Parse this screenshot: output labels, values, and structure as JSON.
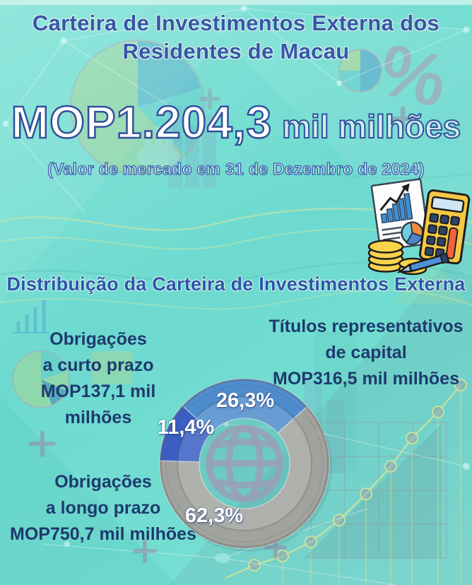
{
  "header": {
    "title_line1": "Carteira de Investimentos Externa dos",
    "title_line2": "Residentes de Macau"
  },
  "headline": {
    "value": "MOP1.204,3",
    "unit": "mil milhões",
    "subtitle": "(Valor de mercado em 31 de Dezembro de 2024)"
  },
  "section_title": "Distribuição da Carteira de Investimentos Externa",
  "chart_data": {
    "type": "pie",
    "title": "Distribuição da Carteira de Investimentos Externa",
    "total_value_label": "MOP1.204,3 mil milhões",
    "total_value": 1204.3,
    "start_angle_deg": -47,
    "direction": "clockwise",
    "center_icon": "globe",
    "segments": [
      {
        "name": "Títulos representativos de capital",
        "value_label": "MOP316,5 mil milhões",
        "value": 316.5,
        "percent": 26.3,
        "percent_label": "26,3%",
        "color": "#4e8ccd",
        "opacity": 1
      },
      {
        "name": "Obrigações a longo prazo",
        "value_label": "MOP750,7 mil milhões",
        "value": 750.7,
        "percent": 62.3,
        "percent_label": "62,3%",
        "color": "#a6a19b",
        "opacity": 0.92
      },
      {
        "name": "Obrigações a curto prazo",
        "value_label": "MOP137,1 mil milhões",
        "value": 137.1,
        "percent": 11.4,
        "percent_label": "11,4%",
        "color": "#3a5ec2",
        "opacity": 1
      }
    ]
  },
  "callouts": {
    "capital": {
      "line1": "Títulos representativos",
      "line2": "de capital",
      "line3": "MOP316,5 mil milhões"
    },
    "short_term": {
      "line1": "Obrigações",
      "line2": "a curto prazo",
      "line3": "MOP137,1 mil milhões"
    },
    "long_term": {
      "line1": "Obrigações",
      "line2": "a longo prazo",
      "line3": "MOP750,7 mil milhões"
    }
  },
  "colors": {
    "background_teal": "#74ddd2",
    "title_blue": "#3a55a6",
    "label_navy": "#1e3a6e",
    "segment_capital_blue": "#4e8ccd",
    "segment_long_gray": "#a6a19b",
    "segment_short_blue": "#3a5ec2",
    "percent_text": "#ffffff",
    "decorative_pink": "#c27ba0",
    "decorative_lime": "#d5e8a2"
  }
}
